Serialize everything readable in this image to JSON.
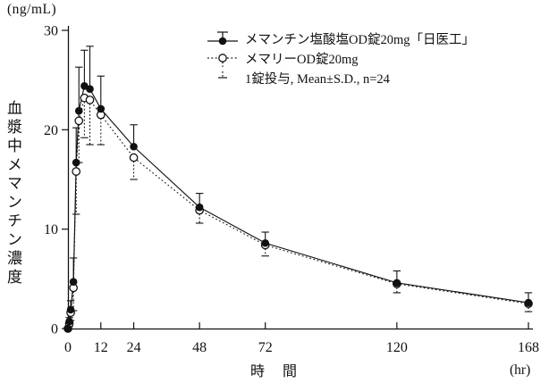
{
  "figure": {
    "y_unit": "(ng/mL)",
    "y_axis_title": "血漿中メマンチン濃度",
    "x_axis_title": "時　間",
    "x_unit": "(hr)"
  },
  "legend": {
    "item1": "メマンチン塩酸塩OD錠20mg「日医工」",
    "item2": "メマリーOD錠20mg",
    "item3": "1錠投与, Mean±S.D., n=24"
  },
  "colors": {
    "ink": "#111111",
    "background": "#ffffff"
  },
  "chart_data": {
    "type": "line",
    "title": "",
    "xlabel": "時間 (hr)",
    "ylabel": "血漿中メマンチン濃度 (ng/mL)",
    "xlim": [
      0,
      168
    ],
    "ylim": [
      0,
      30
    ],
    "xticks": [
      0,
      12,
      24,
      48,
      72,
      120,
      168
    ],
    "yticks": [
      0,
      10,
      20,
      30
    ],
    "grid": false,
    "legend_position": "top-center-inside",
    "annotation": "1錠投与, Mean±S.D., n=24",
    "n": 24,
    "x": [
      0,
      0.5,
      1,
      2,
      3,
      4,
      6,
      8,
      12,
      24,
      48,
      72,
      120,
      168
    ],
    "series": [
      {
        "name": "メマンチン塩酸塩OD錠20mg「日医工」",
        "marker": "filled-circle",
        "line": "solid",
        "error_direction": "up",
        "values": [
          0,
          0.7,
          1.9,
          4.7,
          16.7,
          21.9,
          24.4,
          24.1,
          22.1,
          18.3,
          12.2,
          8.6,
          4.6,
          2.6
        ],
        "sd": [
          0,
          0.4,
          0.9,
          2.4,
          3.5,
          4.4,
          3.6,
          4.3,
          3.3,
          2.2,
          1.4,
          1.1,
          1.2,
          1.0
        ]
      },
      {
        "name": "メマリーOD錠20mg",
        "marker": "open-circle",
        "line": "dotted",
        "error_direction": "down",
        "values": [
          0,
          0.5,
          1.6,
          4.1,
          15.8,
          20.9,
          23.2,
          23.0,
          21.5,
          17.2,
          11.9,
          8.4,
          4.5,
          2.5
        ],
        "sd": [
          0,
          0.3,
          0.8,
          2.3,
          4.3,
          4.2,
          4.0,
          4.5,
          3.0,
          2.2,
          1.3,
          1.1,
          0.9,
          0.8
        ]
      }
    ]
  }
}
